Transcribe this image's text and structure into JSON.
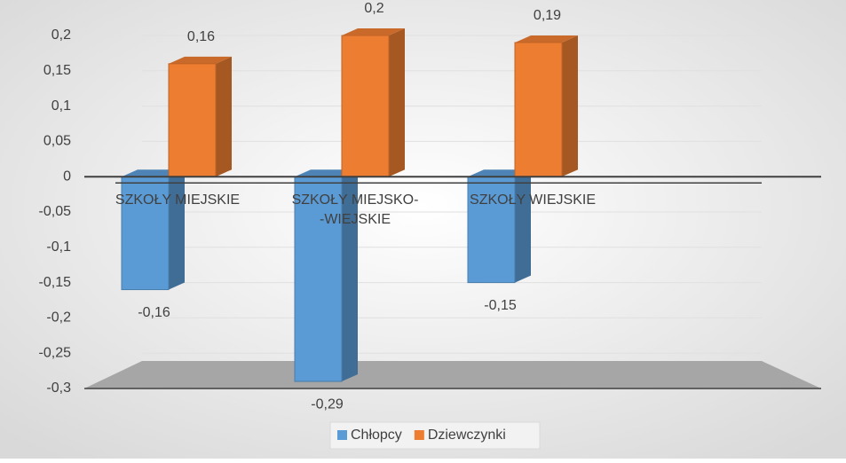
{
  "chart_data": {
    "type": "bar3d",
    "categories": [
      "SZKOŁY MIEJSKIE",
      "SZKOŁY MIEJSKO-\n-WIEJSKIE",
      "SZKOŁY WIEJSKIE"
    ],
    "series": [
      {
        "name": "Chłopcy",
        "color": "#5b9bd5",
        "values": [
          -0.16,
          -0.29,
          -0.15
        ],
        "value_labels": [
          "-0,16",
          "-0,29",
          "-0,15"
        ]
      },
      {
        "name": "Dziewczynki",
        "color": "#ed7d31",
        "values": [
          0.16,
          0.2,
          0.19
        ],
        "value_labels": [
          "0,16",
          "0,2",
          "0,19"
        ]
      }
    ],
    "ylim": [
      -0.3,
      0.2
    ],
    "yticks": [
      {
        "value": 0.2,
        "label": "0,2"
      },
      {
        "value": 0.15,
        "label": "0,15"
      },
      {
        "value": 0.1,
        "label": "0,1"
      },
      {
        "value": 0.05,
        "label": "0,05"
      },
      0,
      {
        "value": -0.05,
        "label": "-0,05"
      },
      {
        "value": -0.1,
        "label": "-0,1"
      },
      {
        "value": -0.15,
        "label": "-0,15"
      },
      {
        "value": -0.2,
        "label": "-0,2"
      },
      {
        "value": -0.25,
        "label": "-0,25"
      },
      {
        "value": -0.3,
        "label": "-0,3"
      }
    ],
    "grid": true,
    "legend": "bottom"
  }
}
